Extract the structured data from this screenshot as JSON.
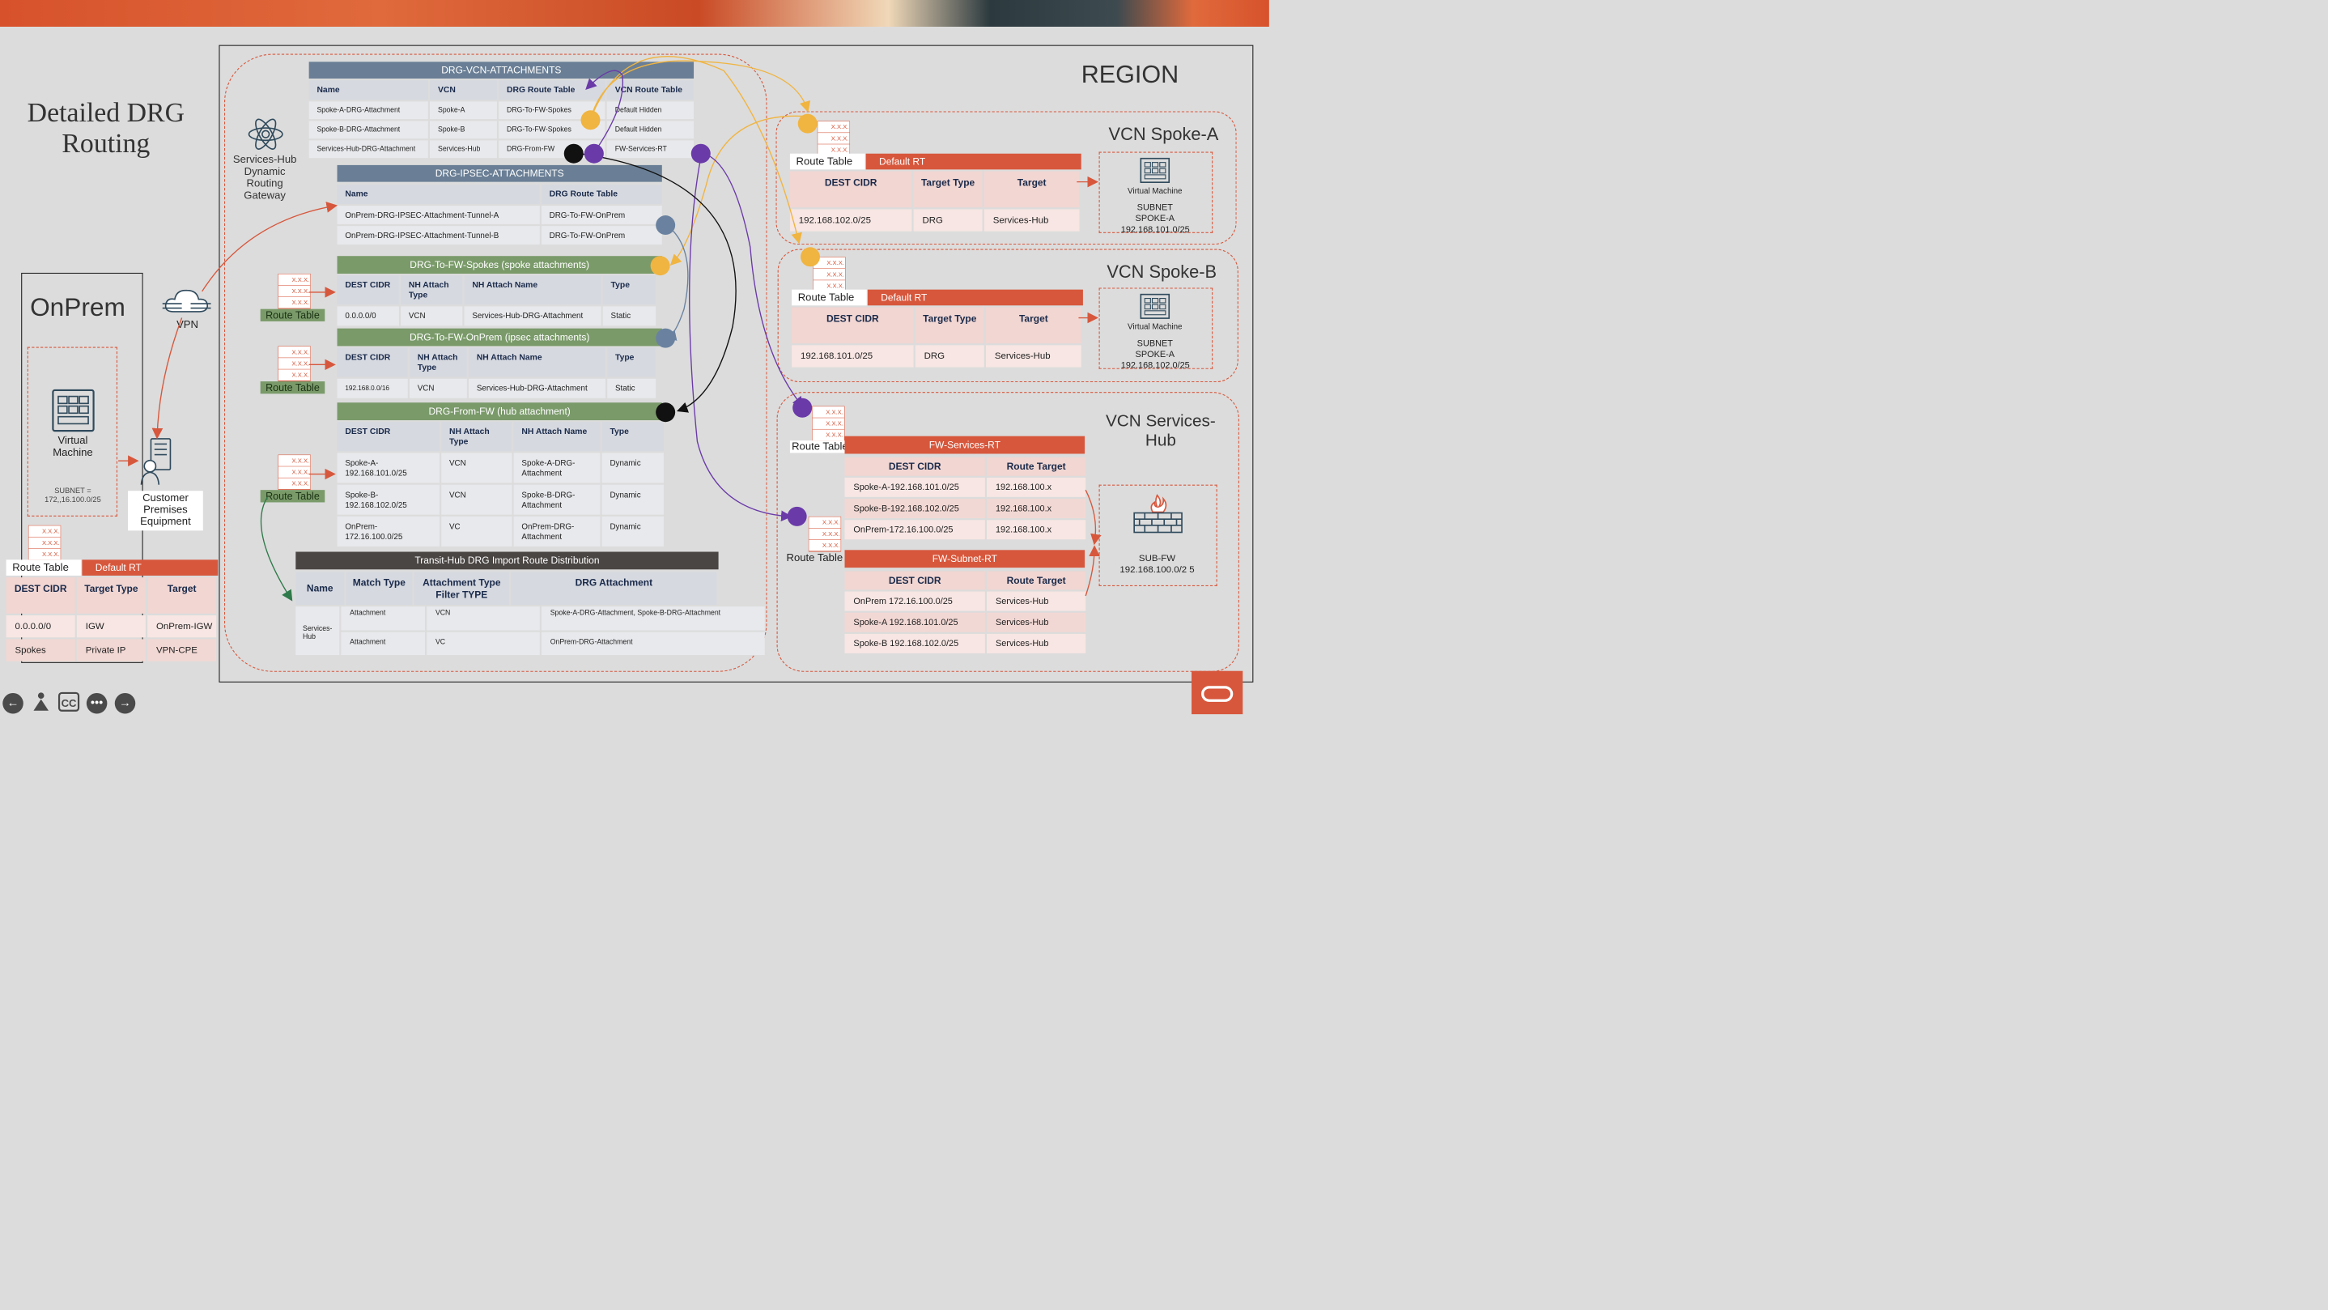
{
  "title": "Detailed DRG Routing",
  "region_label": "REGION",
  "drg": {
    "label": "Services-Hub Dynamic Routing Gateway",
    "vcn_attach": {
      "title": "DRG-VCN-ATTACHMENTS",
      "headers": [
        "Name",
        "VCN",
        "DRG Route Table",
        "VCN Route Table"
      ],
      "rows": [
        [
          "Spoke-A-DRG-Attachment",
          "Spoke-A",
          "DRG-To-FW-Spokes",
          "Default Hidden"
        ],
        [
          "Spoke-B-DRG-Attachment",
          "Spoke-B",
          "DRG-To-FW-Spokes",
          "Default Hidden"
        ],
        [
          "Services-Hub-DRG-Attachment",
          "Services-Hub",
          "DRG-From-FW",
          "FW-Services-RT"
        ]
      ]
    },
    "ipsec_attach": {
      "title": "DRG-IPSEC-ATTACHMENTS",
      "headers": [
        "Name",
        "DRG Route Table"
      ],
      "rows": [
        [
          "OnPrem-DRG-IPSEC-Attachment-Tunnel-A",
          "DRG-To-FW-OnPrem"
        ],
        [
          "OnPrem-DRG-IPSEC-Attachment-Tunnel-B",
          "DRG-To-FW-OnPrem"
        ]
      ]
    },
    "to_fw_spokes": {
      "title": "DRG-To-FW-Spokes (spoke attachments)",
      "headers": [
        "DEST CIDR",
        "NH Attach Type",
        "NH Attach Name",
        "Type"
      ],
      "rows": [
        [
          "0.0.0.0/0",
          "VCN",
          "Services-Hub-DRG-Attachment",
          "Static"
        ]
      ]
    },
    "to_fw_onprem": {
      "title": "DRG-To-FW-OnPrem (ipsec attachments)",
      "headers": [
        "DEST CIDR",
        "NH Attach Type",
        "NH Attach Name",
        "Type"
      ],
      "rows": [
        [
          "192.168.0.0/16",
          "VCN",
          "Services-Hub-DRG-Attachment",
          "Static"
        ]
      ]
    },
    "from_fw": {
      "title": "DRG-From-FW (hub attachment)",
      "headers": [
        "DEST CIDR",
        "NH Attach Type",
        "NH Attach Name",
        "Type"
      ],
      "rows": [
        [
          "Spoke-A- 192.168.101.0/25",
          "VCN",
          "Spoke-A-DRG- Attachment",
          "Dynamic"
        ],
        [
          "Spoke-B- 192.168.102.0/25",
          "VCN",
          "Spoke-B-DRG- Attachment",
          "Dynamic"
        ],
        [
          "OnPrem- 172.16.100.0/25",
          "VC",
          "OnPrem-DRG- Attachment",
          "Dynamic"
        ]
      ]
    },
    "import_dist": {
      "title": "Transit-Hub DRG Import Route Distribution",
      "headers": [
        "Name",
        "Match Type",
        "Attachment Type Filter TYPE",
        "DRG Attachment"
      ],
      "name": "Services- Hub",
      "rows": [
        [
          "Attachment",
          "VCN",
          "Spoke-A-DRG-Attachment, Spoke-B-DRG-Attachment"
        ],
        [
          "Attachment",
          "VC",
          "OnPrem-DRG-Attachment"
        ]
      ]
    },
    "route_table_label": "Route Table"
  },
  "onprem": {
    "title": "OnPrem",
    "vm_label": "Virtual Machine",
    "subnet_label": "SUBNET = 172,,16.100.0/25",
    "vpn_label": "VPN",
    "cpe_label": "Customer Premises Equipment",
    "rt": {
      "label": "Route Table",
      "name": "Default RT",
      "headers": [
        "DEST CIDR",
        "Target Type",
        "Target"
      ],
      "rows": [
        [
          "0.0.0.0/0",
          "IGW",
          "OnPrem-IGW"
        ],
        [
          "Spokes",
          "Private IP",
          "VPN-CPE"
        ]
      ]
    }
  },
  "spoke_a": {
    "title": "VCN Spoke-A",
    "vm_label": "Virtual Machine",
    "subnet_label": "SUBNET SPOKE-A 192.168.101.0/25",
    "rt": {
      "label": "Route Table",
      "name": "Default RT",
      "headers": [
        "DEST CIDR",
        "Target Type",
        "Target"
      ],
      "rows": [
        [
          "192.168.102.0/25",
          "DRG",
          "Services-Hub"
        ]
      ]
    }
  },
  "spoke_b": {
    "title": "VCN Spoke-B",
    "vm_label": "Virtual Machine",
    "subnet_label": "SUBNET SPOKE-A 192.168.102.0/25",
    "rt": {
      "label": "Route Table",
      "name": "Default RT",
      "headers": [
        "DEST CIDR",
        "Target Type",
        "Target"
      ],
      "rows": [
        [
          "192.168.101.0/25",
          "DRG",
          "Services-Hub"
        ]
      ]
    }
  },
  "hub": {
    "title": "VCN Services- Hub",
    "fw_label": "SUB-FW 192.168.100.0/2 5",
    "rt1": {
      "label": "Route Table",
      "name": "FW-Services-RT",
      "headers": [
        "DEST CIDR",
        "Route Target"
      ],
      "rows": [
        [
          "Spoke-A-192.168.101.0/25",
          "192.168.100.x"
        ],
        [
          "Spoke-B-192.168.102.0/25",
          "192.168.100.x"
        ],
        [
          "OnPrem-172.16.100.0/25",
          "192.168.100.x"
        ]
      ]
    },
    "rt2": {
      "label": "Route Table",
      "name": "FW-Subnet-RT",
      "headers": [
        "DEST CIDR",
        "Route Target"
      ],
      "rows": [
        [
          "OnPrem 172.16.100.0/25",
          "Services-Hub"
        ],
        [
          "Spoke-A 192.168.101.0/25",
          "Services-Hub"
        ],
        [
          "Spoke-B 192.168.102.0/25",
          "Services-Hub"
        ]
      ]
    }
  },
  "rt_icon_text": "X.X.X.",
  "cc_label": "CC",
  "colors": {
    "accent_red": "#d7573c",
    "orange_dot": "#f0b440",
    "purple_dot": "#6a3aa8",
    "blue_dot": "#6a82a0",
    "black_dot": "#111111"
  }
}
